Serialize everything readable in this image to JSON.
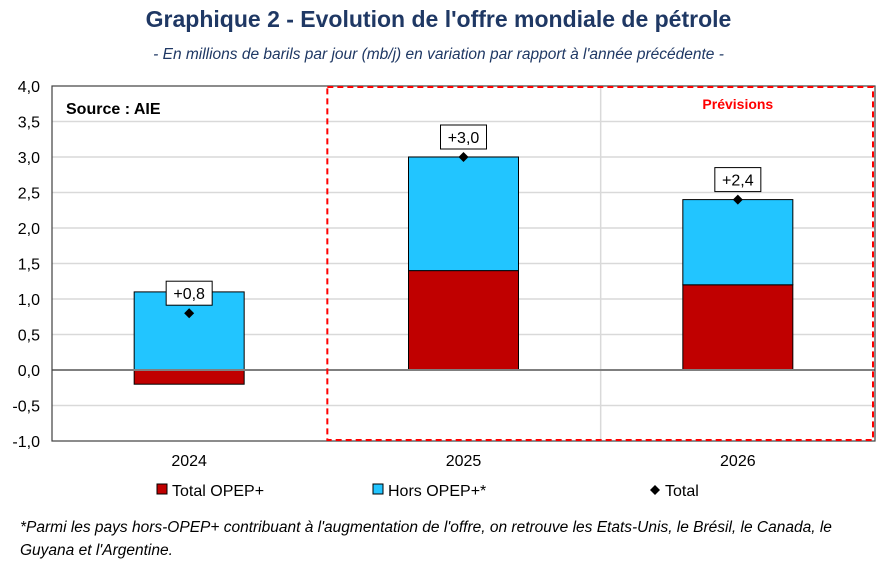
{
  "chart_data": {
    "type": "bar",
    "stacked": true,
    "title": "Graphique 2 - Evolution de l'offre mondiale de pétrole",
    "subtitle": "- En millions de barils par jour (mb/j) en variation par rapport à l'année précédente -",
    "source": "Source : AIE",
    "forecast_label": "Prévisions",
    "categories": [
      "2024",
      "2025",
      "2026"
    ],
    "ylim": [
      -1.0,
      4.0
    ],
    "yticks": [
      "-1,0",
      "-0,5",
      "0,0",
      "0,5",
      "1,0",
      "1,5",
      "2,0",
      "2,5",
      "3,0",
      "3,5",
      "4,0"
    ],
    "grid": true,
    "legend_placement": "bottom",
    "series": [
      {
        "name": "Total OPEP+",
        "type": "bar",
        "color": "#C00000",
        "values": [
          -0.2,
          1.4,
          1.2
        ]
      },
      {
        "name": "Hors OPEP+*",
        "type": "bar",
        "color": "#22C5FF",
        "values": [
          1.1,
          1.6,
          1.2
        ]
      },
      {
        "name": "Total",
        "type": "marker",
        "color": "#000000",
        "values": [
          0.8,
          3.0,
          2.4
        ]
      }
    ],
    "data_labels": [
      "+0,8",
      "+3,0",
      "+2,4"
    ],
    "forecast_box_color": "#FF0000"
  },
  "footnote": "*Parmi les pays hors-OPEP+ contribuant à l'augmentation de l'offre, on retrouve les Etats-Unis, le Brésil, le Canada, le Guyana et l'Argentine.",
  "colors": {
    "title": "#1F3864",
    "subtitle": "#1F3864"
  }
}
